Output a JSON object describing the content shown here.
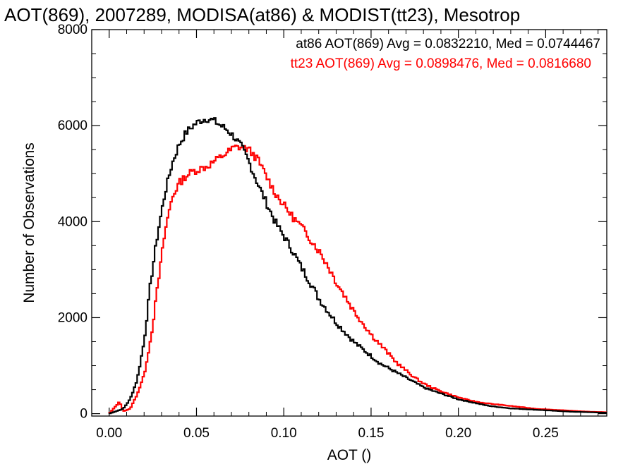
{
  "chart_data": {
    "type": "line",
    "style": "step",
    "title": "AOT(869), 2007289, MODISA(at86) & MODIST(tt23), Mesotrop",
    "xlabel": "AOT ()",
    "ylabel": "Number of Observations",
    "xlim": [
      -0.01,
      0.285
    ],
    "ylim": [
      -50,
      8000
    ],
    "x_ticks": [
      0.0,
      0.05,
      0.1,
      0.15,
      0.2,
      0.25
    ],
    "x_tick_labels": [
      "0.00",
      "0.05",
      "0.10",
      "0.15",
      "0.20",
      "0.25"
    ],
    "y_ticks": [
      0,
      2000,
      4000,
      6000,
      8000
    ],
    "y_tick_labels": [
      "0",
      "2000",
      "4000",
      "6000",
      "8000"
    ],
    "grid": false,
    "legend_placement": "top-right",
    "series": [
      {
        "name": "at86",
        "legend": "at86 AOT(869) Avg = 0.0832210, Med = 0.0744467",
        "color": "#000000",
        "x": [
          0.0,
          0.008,
          0.012,
          0.016,
          0.02,
          0.024,
          0.028,
          0.032,
          0.036,
          0.04,
          0.044,
          0.048,
          0.052,
          0.056,
          0.06,
          0.064,
          0.068,
          0.072,
          0.076,
          0.08,
          0.085,
          0.09,
          0.095,
          0.1,
          0.105,
          0.11,
          0.115,
          0.12,
          0.125,
          0.13,
          0.135,
          0.14,
          0.145,
          0.15,
          0.155,
          0.16,
          0.165,
          0.17,
          0.175,
          0.18,
          0.185,
          0.19,
          0.195,
          0.2,
          0.205,
          0.21,
          0.215,
          0.22,
          0.225,
          0.23,
          0.235,
          0.24,
          0.245,
          0.25,
          0.255,
          0.26,
          0.265,
          0.27,
          0.275,
          0.28,
          0.285
        ],
        "y": [
          0,
          100,
          300,
          700,
          1500,
          2800,
          3800,
          4600,
          5200,
          5600,
          5850,
          6000,
          6100,
          6150,
          6100,
          6000,
          5900,
          5750,
          5550,
          5250,
          4800,
          4400,
          4000,
          3700,
          3400,
          3050,
          2750,
          2400,
          2150,
          1900,
          1700,
          1500,
          1350,
          1200,
          1050,
          950,
          850,
          750,
          650,
          550,
          480,
          420,
          360,
          300,
          260,
          220,
          180,
          150,
          130,
          110,
          100,
          90,
          80,
          70,
          60,
          50,
          40,
          35,
          30,
          25,
          20
        ]
      },
      {
        "name": "tt23",
        "legend": "tt23 AOT(869) Avg = 0.0898476, Med = 0.0816680",
        "color": "#ff0000",
        "x": [
          0.0,
          0.006,
          0.008,
          0.012,
          0.016,
          0.02,
          0.024,
          0.028,
          0.032,
          0.036,
          0.04,
          0.044,
          0.048,
          0.052,
          0.056,
          0.06,
          0.064,
          0.068,
          0.072,
          0.076,
          0.08,
          0.085,
          0.09,
          0.095,
          0.1,
          0.105,
          0.11,
          0.115,
          0.12,
          0.125,
          0.13,
          0.135,
          0.14,
          0.145,
          0.15,
          0.155,
          0.16,
          0.165,
          0.17,
          0.175,
          0.18,
          0.185,
          0.19,
          0.195,
          0.2,
          0.205,
          0.21,
          0.215,
          0.22,
          0.225,
          0.23,
          0.235,
          0.24,
          0.245,
          0.25,
          0.255,
          0.26,
          0.265,
          0.27,
          0.275,
          0.28,
          0.285
        ],
        "y": [
          0,
          250,
          50,
          100,
          400,
          800,
          1600,
          2700,
          3800,
          4500,
          4800,
          4950,
          5050,
          5100,
          5150,
          5250,
          5350,
          5450,
          5550,
          5550,
          5500,
          5300,
          4950,
          4600,
          4350,
          4100,
          3900,
          3650,
          3400,
          3100,
          2750,
          2450,
          2150,
          1900,
          1650,
          1450,
          1250,
          1050,
          900,
          750,
          630,
          540,
          470,
          400,
          340,
          290,
          250,
          220,
          200,
          180,
          160,
          140,
          120,
          100,
          90,
          80,
          70,
          60,
          50,
          40,
          35,
          30
        ]
      }
    ]
  }
}
